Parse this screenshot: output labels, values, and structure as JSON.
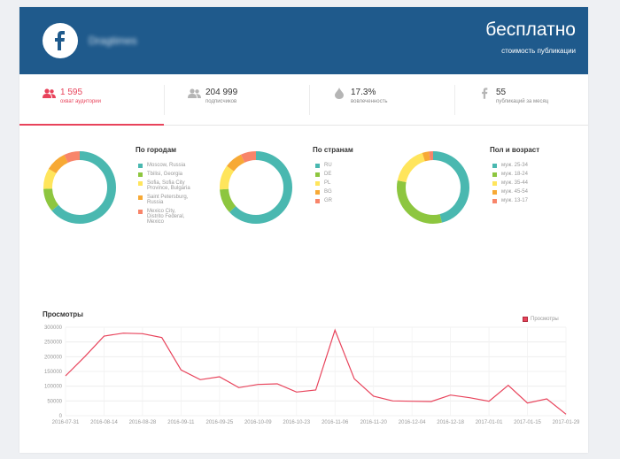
{
  "header": {
    "publication_name": "Dragtimes",
    "price": "бесплатно",
    "price_caption": "стоимость публикации"
  },
  "stats": [
    {
      "value": "1 595",
      "label": "охват аудитории",
      "icon": "users-icon",
      "active": true
    },
    {
      "value": "204 999",
      "label": "подписчиков",
      "icon": "subscribers-icon",
      "active": false
    },
    {
      "value": "17.3%",
      "label": "вовлеченность",
      "icon": "drop-icon",
      "active": false
    },
    {
      "value": "55",
      "label": "публикаций за месяц",
      "icon": "facebook-icon",
      "active": false
    }
  ],
  "colors": {
    "teal": "#4ab8b0",
    "green": "#8dc63f",
    "yellow": "#ffe55c",
    "orange": "#f7a935",
    "salmon": "#f8856a",
    "accent": "#e8435b",
    "header": "#1f5a8c"
  },
  "donuts": [
    {
      "title": "По городам",
      "legend": [
        "Moscow, Russia",
        "Tbilisi, Georgia",
        "Sofia, Sofia City Province, Bulgaria",
        "Saint Petersburg, Russia",
        "Mexico City, Distrito Federal, Mexico"
      ],
      "values": [
        62,
        10,
        9,
        9,
        7
      ]
    },
    {
      "title": "По странам",
      "legend": [
        "RU",
        "DE",
        "PL",
        "BG",
        "GR"
      ],
      "values": [
        63,
        11,
        11,
        8,
        7
      ]
    },
    {
      "title": "Пол и возраст",
      "legend": [
        "муж. 25-34",
        "муж. 18-24",
        "муж. 35-44",
        "муж. 45-54",
        "муж. 13-17"
      ],
      "values": [
        46,
        32,
        17,
        3,
        2
      ]
    }
  ],
  "views": {
    "title": "Просмотры",
    "legend": "Просмотры"
  },
  "chart_data": {
    "type": "line",
    "title": "Просмотры",
    "series": [
      {
        "name": "Просмотры",
        "values": [
          135000,
          200000,
          270000,
          280000,
          278000,
          265000,
          155000,
          122000,
          132000,
          95000,
          106000,
          108000,
          80000,
          87000,
          290000,
          125000,
          66000,
          50000,
          49000,
          48000,
          70000,
          61000,
          49000,
          103000,
          43000,
          57000,
          5000
        ]
      }
    ],
    "x_ticks": [
      "2016-07-31",
      "2016-08-14",
      "2016-08-28",
      "2016-09-11",
      "2016-09-25",
      "2016-10-09",
      "2016-10-23",
      "2016-11-06",
      "2016-11-20",
      "2016-12-04",
      "2016-12-18",
      "2017-01-01",
      "2017-01-15",
      "2017-01-29"
    ],
    "y_ticks": [
      0,
      50000,
      100000,
      150000,
      200000,
      250000,
      300000
    ],
    "ylim": [
      0,
      300000
    ],
    "grid": true,
    "legend_position": "top-right"
  }
}
